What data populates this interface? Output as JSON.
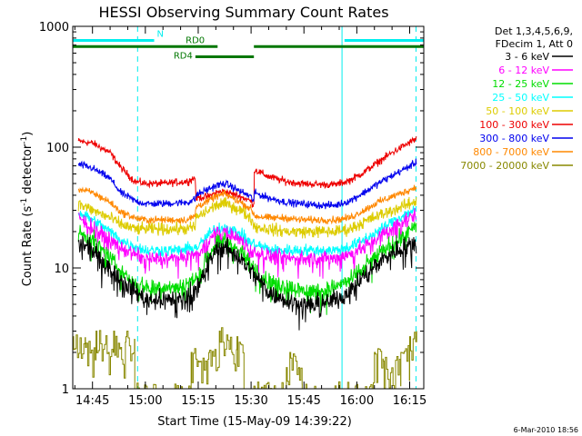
{
  "chart_data": {
    "type": "line",
    "title": "HESSI Observing Summary Count Rates",
    "xlabel": "Start Time (15-May-09 14:39:22)",
    "ylabel": {
      "base": "Count Rate (s",
      "sup1": "-1",
      "mid": " detector",
      "sup2": "-1",
      "end": ")"
    },
    "yscale": "log",
    "ylim": [
      1,
      1000
    ],
    "xlim_min": [
      39.4,
      139.0
    ],
    "ytick_values": [
      1,
      10,
      100,
      1000
    ],
    "ytick_labels": [
      "1",
      "10",
      "100",
      "1000"
    ],
    "xtick_values": [
      45,
      60,
      75,
      90,
      105,
      120,
      135
    ],
    "xtick_labels": [
      "14:45",
      "15:00",
      "15:15",
      "15:30",
      "15:45",
      "16:00",
      "16:15"
    ],
    "footer_date": "6-Mar-2010 18:56",
    "legend": {
      "header": [
        "Det 1,3,4,5,6,9,",
        "FDecim 1, Att 0"
      ],
      "entries": [
        {
          "label": "3 - 6 keV",
          "color": "#000000"
        },
        {
          "label": "6 - 12 keV",
          "color": "#ff00ff"
        },
        {
          "label": "12 - 25 keV",
          "color": "#00dd00"
        },
        {
          "label": "25 - 50 keV",
          "color": "#00ffff"
        },
        {
          "label": "50 - 100 keV",
          "color": "#ddcc00"
        },
        {
          "label": "100 - 300 keV",
          "color": "#ee0000"
        },
        {
          "label": "300 - 800 keV",
          "color": "#0000ee"
        },
        {
          "label": "800 - 7000 keV",
          "color": "#ff8800"
        },
        {
          "label": "7000 - 20000 keV",
          "color": "#888800"
        }
      ]
    },
    "flags": [
      {
        "label": "N",
        "color": "#00eeee",
        "segments": [
          [
            39.4,
            62.5
          ],
          [
            116.5,
            139.0
          ]
        ],
        "level": 765
      },
      {
        "label": "RD0",
        "color": "#007700",
        "segments": [
          [
            39.4,
            80.5
          ],
          [
            90.8,
            139.0
          ]
        ],
        "level": 680
      },
      {
        "label": "RD4",
        "color": "#007700",
        "segments": [
          [
            74.2,
            90.8
          ]
        ],
        "level": 560
      }
    ],
    "vertical_markers": {
      "solid": [
        {
          "x": 39.4,
          "color": "#00eeee"
        },
        {
          "x": 115.8,
          "color": "#00eeee"
        }
      ],
      "dashed": [
        {
          "x": 57.8,
          "color": "#00eeee"
        },
        {
          "x": 136.8,
          "color": "#00eeee"
        }
      ]
    },
    "series": [
      {
        "name": "100 - 300 keV",
        "color": "#ee0000",
        "noise": 0.03,
        "x": [
          41,
          45,
          50,
          53,
          57,
          60,
          65,
          72,
          74.2,
          74.3,
          78,
          80,
          82.5,
          84,
          87,
          89.8,
          90.8,
          90.9,
          95,
          100,
          104,
          110,
          114,
          118,
          122,
          126,
          130,
          134,
          137
        ],
        "values": [
          112,
          108,
          90,
          68,
          52,
          50,
          50,
          52,
          56,
          38,
          39,
          42,
          43,
          41.5,
          39,
          36,
          33,
          65,
          57,
          52,
          50,
          49,
          49,
          53,
          62,
          75,
          90,
          105,
          118
        ]
      },
      {
        "name": "300 - 800 keV",
        "color": "#0000ee",
        "noise": 0.03,
        "x": [
          41,
          45,
          50,
          53,
          57,
          60,
          65,
          72,
          74.2,
          74.3,
          78,
          80,
          82.5,
          84,
          87,
          89.8,
          90.8,
          90.9,
          95,
          100,
          104,
          110,
          114,
          118,
          122,
          126,
          130,
          134,
          137
        ],
        "values": [
          72,
          67,
          55,
          42,
          36,
          34,
          34,
          35,
          37,
          40,
          45,
          48,
          50,
          48,
          43,
          39,
          36,
          42,
          38,
          35,
          34,
          33,
          33,
          36,
          42,
          50,
          58,
          67,
          75
        ]
      },
      {
        "name": "800 - 7000 keV",
        "color": "#ff8800",
        "noise": 0.03,
        "x": [
          41,
          45,
          50,
          53,
          57,
          60,
          65,
          72,
          74.2,
          74.3,
          78,
          80,
          82.5,
          84,
          87,
          89.8,
          90.8,
          90.9,
          95,
          100,
          104,
          110,
          114,
          118,
          122,
          126,
          130,
          134,
          137
        ],
        "values": [
          45,
          42,
          35,
          29,
          26,
          25,
          25,
          25,
          27,
          32,
          36,
          39,
          41,
          39,
          35,
          31,
          28,
          27,
          26,
          26,
          25,
          25,
          25,
          26,
          30,
          35,
          39,
          43,
          47
        ]
      },
      {
        "name": "50 - 100 keV",
        "color": "#ddcc00",
        "noise": 0.05,
        "x": [
          41,
          45,
          50,
          53,
          57,
          60,
          65,
          72,
          74.2,
          74.3,
          78,
          80,
          82.5,
          84,
          87,
          89.8,
          90.8,
          90.9,
          95,
          100,
          104,
          110,
          114,
          118,
          122,
          126,
          130,
          134,
          137
        ],
        "values": [
          34,
          30,
          26,
          23,
          21,
          21,
          21,
          21,
          22,
          26,
          30,
          33,
          34,
          33,
          30,
          26,
          23,
          22,
          21,
          20,
          20,
          20,
          20,
          21,
          24,
          27,
          30,
          33,
          36
        ]
      },
      {
        "name": "25 - 50 keV",
        "color": "#00ffff",
        "noise": 0.05,
        "x": [
          41,
          45,
          50,
          53,
          57,
          60,
          65,
          70,
          75,
          78,
          80,
          82.5,
          84,
          87,
          90,
          93,
          96,
          100,
          105,
          110,
          114,
          118,
          122,
          126,
          130,
          134,
          137
        ],
        "values": [
          29,
          25,
          20,
          17,
          15,
          14,
          14,
          14,
          15,
          19,
          21,
          22,
          21,
          19,
          16,
          15,
          14,
          14,
          14,
          14,
          14,
          15,
          17,
          20,
          24,
          28,
          31
        ]
      },
      {
        "name": "6 - 12 keV",
        "color": "#ff00ff",
        "noise": 0.06,
        "x": [
          41,
          45,
          50,
          53,
          57,
          60,
          65,
          70,
          75,
          78,
          80,
          82.5,
          84,
          87,
          90,
          93,
          96,
          100,
          105,
          110,
          114,
          118,
          122,
          126,
          130,
          134,
          137
        ],
        "values": [
          26,
          22,
          17,
          14.5,
          13,
          12,
          12,
          12,
          13,
          17,
          19,
          20,
          19,
          17,
          14,
          13,
          12.5,
          12,
          12,
          12,
          12,
          13,
          15,
          18,
          21,
          25,
          28
        ]
      },
      {
        "name": "12 - 25 keV",
        "color": "#00dd00",
        "noise": 0.07,
        "x": [
          41,
          45,
          50,
          53,
          57,
          60,
          65,
          70,
          75,
          78,
          80,
          82.5,
          84,
          87,
          90,
          93,
          96,
          100,
          105,
          110,
          114,
          118,
          122,
          126,
          130,
          134,
          137
        ],
        "values": [
          20,
          17,
          12,
          9.5,
          7.5,
          7,
          7,
          7,
          8.5,
          13,
          16,
          17,
          16,
          13.5,
          10.5,
          8.5,
          7.5,
          7,
          6.5,
          6.5,
          7,
          8,
          10,
          13,
          16,
          19,
          22
        ]
      },
      {
        "name": "3 - 6 keV",
        "color": "#000000",
        "noise": 0.08,
        "x": [
          41,
          45,
          50,
          53,
          57,
          60,
          65,
          70,
          75,
          78,
          80,
          82.5,
          84,
          87,
          90,
          93,
          96,
          100,
          105,
          110,
          114,
          118,
          122,
          126,
          130,
          134,
          137
        ],
        "values": [
          16,
          14,
          10,
          8,
          6.5,
          5.5,
          5.5,
          5.5,
          7,
          11,
          14,
          15,
          14,
          12,
          9.5,
          7.5,
          6,
          5.5,
          5,
          5,
          5.5,
          6.5,
          8.5,
          11,
          13.5,
          15,
          16.5
        ]
      },
      {
        "name": "7000 - 20000 keV",
        "color": "#888800",
        "noise": 0,
        "style": "steps",
        "x": [
          39.4,
          43,
          46,
          49.5,
          51,
          53,
          54.5,
          57,
          67,
          73,
          75,
          78,
          80.5,
          81,
          84.5,
          86,
          88,
          98.5,
          100,
          101,
          103.5,
          104.5,
          123,
          125,
          127.5,
          132.5,
          135,
          137
        ],
        "values": [
          2.7,
          2.2,
          3.0,
          2.0,
          3.0,
          2.2,
          2.7,
          1.0,
          1.0,
          2.0,
          1.7,
          2.0,
          1.5,
          3.0,
          2.0,
          2.7,
          1.0,
          1.0,
          1.5,
          2.0,
          1.5,
          1.0,
          1.0,
          2.0,
          1.7,
          2.0,
          2.7,
          3.0
        ]
      }
    ]
  }
}
